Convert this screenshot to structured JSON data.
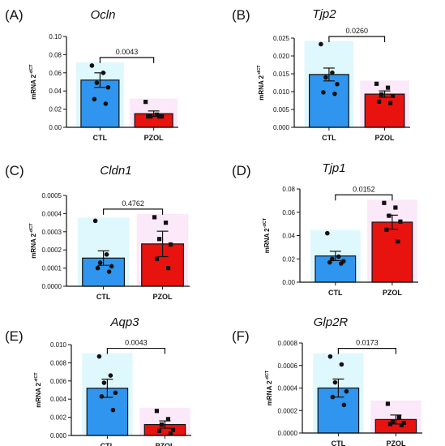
{
  "chart_data": [
    {
      "type": "bar",
      "panel": "(A)",
      "title": "Ocln",
      "ylabel": "mRNA 2",
      "ylabel_sup": "-dCT",
      "ylim": [
        0,
        0.1
      ],
      "yticks": [
        "0.00",
        "0.02",
        "0.04",
        "0.06",
        "0.08",
        "0.10"
      ],
      "yticks_values": [
        0,
        0.02,
        0.04,
        0.06,
        0.08,
        0.1
      ],
      "categories": [
        "CTL",
        "PZOL"
      ],
      "values": [
        0.052,
        0.015
      ],
      "sem": [
        0.008,
        0.003
      ],
      "points": [
        [
          0.068,
          0.06,
          0.049,
          0.044,
          0.031,
          0.026
        ],
        [
          0.028,
          0.014,
          0.012,
          0.012,
          0.012,
          0.012
        ]
      ],
      "pvalue": "0.0043",
      "colors": [
        "#2f95ee",
        "#e8120e"
      ],
      "point_shapes": [
        "circle",
        "square"
      ]
    },
    {
      "type": "bar",
      "panel": "(B)",
      "title": "Tjp2",
      "ylabel": "mRNA 2",
      "ylabel_sup": "-dCT",
      "ylim": [
        0,
        0.025
      ],
      "yticks": [
        "0.000",
        "0.005",
        "0.010",
        "0.015",
        "0.020",
        "0.025"
      ],
      "yticks_values": [
        0,
        0.005,
        0.01,
        0.015,
        0.02,
        0.025
      ],
      "categories": [
        "CTL",
        "PZOL"
      ],
      "values": [
        0.0148,
        0.0093
      ],
      "sem": [
        0.0018,
        0.0009
      ],
      "points": [
        [
          0.0233,
          0.0153,
          0.014,
          0.0121,
          0.0098,
          0.0094
        ],
        [
          0.0122,
          0.0111,
          0.0092,
          0.0088,
          0.0072,
          0.0068
        ]
      ],
      "pvalue": "0.0260",
      "colors": [
        "#2f95ee",
        "#e8120e"
      ],
      "point_shapes": [
        "circle",
        "square"
      ]
    },
    {
      "type": "bar",
      "panel": "(C)",
      "title": "Cldn1",
      "ylabel": "mRNA 2",
      "ylabel_sup": "-dCT",
      "ylim": [
        0,
        0.0005
      ],
      "yticks": [
        "0.0000",
        "0.0001",
        "0.0002",
        "0.0003",
        "0.0004",
        "0.0005"
      ],
      "yticks_values": [
        0,
        0.0001,
        0.0002,
        0.0003,
        0.0004,
        0.0005
      ],
      "categories": [
        "CTL",
        "PZOL"
      ],
      "values": [
        0.000155,
        0.000233
      ],
      "sem": [
        4e-05,
        7e-05
      ],
      "points": [
        [
          0.00036,
          0.000175,
          0.00013,
          0.00011,
          0.0001,
          8e-05
        ],
        [
          0.00038,
          0.00035,
          0.00026,
          0.00023,
          0.00015,
          0.0001
        ]
      ],
      "pvalue": "0.4762",
      "colors": [
        "#2f95ee",
        "#e8120e"
      ],
      "point_shapes": [
        "circle",
        "square"
      ]
    },
    {
      "type": "bar",
      "panel": "(D)",
      "title": "Tjp1",
      "ylabel": "mRNA 2",
      "ylabel_sup": "-dCT",
      "ylim": [
        0,
        0.08
      ],
      "yticks": [
        "0.00",
        "0.02",
        "0.04",
        "0.06",
        "0.08"
      ],
      "yticks_values": [
        0,
        0.02,
        0.04,
        0.06,
        0.08
      ],
      "categories": [
        "CTL",
        "PZOL"
      ],
      "values": [
        0.0225,
        0.0515
      ],
      "sem": [
        0.004,
        0.006
      ],
      "points": [
        [
          0.042,
          0.022,
          0.02,
          0.018,
          0.017,
          0.016
        ],
        [
          0.068,
          0.064,
          0.057,
          0.052,
          0.045,
          0.035
        ]
      ],
      "pvalue": "0.0152",
      "colors": [
        "#2f95ee",
        "#e8120e"
      ],
      "point_shapes": [
        "circle",
        "square"
      ]
    },
    {
      "type": "bar",
      "panel": "(E)",
      "title": "Aqp3",
      "ylabel": "mRNA 2",
      "ylabel_sup": "-dCT",
      "ylim": [
        0,
        0.01
      ],
      "yticks": [
        "0.000",
        "0.002",
        "0.004",
        "0.006",
        "0.008",
        "0.010"
      ],
      "yticks_values": [
        0,
        0.002,
        0.004,
        0.006,
        0.008,
        0.01
      ],
      "categories": [
        "CTL",
        "PZOL"
      ],
      "values": [
        0.0052,
        0.0012
      ],
      "sem": [
        0.001,
        0.0004
      ],
      "points": [
        [
          0.0087,
          0.0066,
          0.0058,
          0.0047,
          0.0043,
          0.0028
        ],
        [
          0.0027,
          0.0018,
          0.0012,
          0.0006,
          0.0005,
          0.0002
        ]
      ],
      "pvalue": "0.0043",
      "colors": [
        "#2f95ee",
        "#e8120e"
      ],
      "point_shapes": [
        "circle",
        "square"
      ]
    },
    {
      "type": "bar",
      "panel": "(F)",
      "title": "Glp2R",
      "ylabel": "mRNA 2",
      "ylabel_sup": "-dCT",
      "ylim": [
        0,
        0.0008
      ],
      "yticks": [
        "0.0000",
        "0.0002",
        "0.0004",
        "0.0006",
        "0.0008"
      ],
      "yticks_values": [
        0,
        0.0002,
        0.0004,
        0.0006,
        0.0008
      ],
      "categories": [
        "CTL",
        "PZOL"
      ],
      "values": [
        0.0004,
        0.00012
      ],
      "sem": [
        8e-05,
        4e-05
      ],
      "points": [
        [
          0.00068,
          0.00061,
          0.00045,
          0.00037,
          0.00032,
          0.00025
        ],
        [
          0.00026,
          0.00014,
          0.0001,
          9e-05,
          8e-05,
          7e-05
        ]
      ],
      "pvalue": "0.0173",
      "colors": [
        "#2f95ee",
        "#e8120e"
      ],
      "point_shapes": [
        "circle",
        "square"
      ]
    }
  ]
}
